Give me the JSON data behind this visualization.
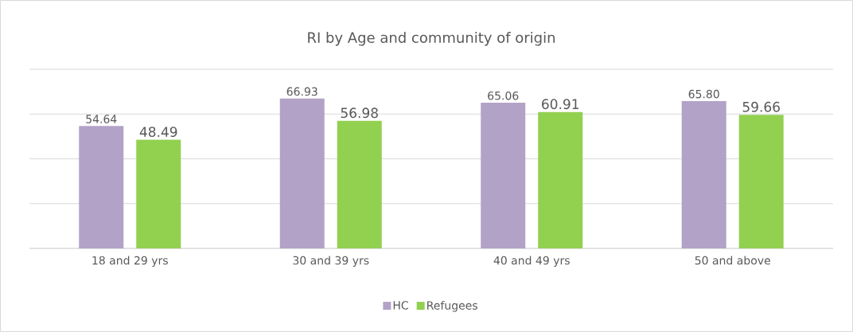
{
  "chart_data": {
    "type": "bar",
    "title": "RI by Age and community of origin",
    "categories": [
      "18 and 29 yrs",
      "30 and 39 yrs",
      "40 and 49 yrs",
      "50 and above"
    ],
    "series": [
      {
        "name": "HC",
        "color": "#b3a2c7",
        "values": [
          54.64,
          66.93,
          65.06,
          65.8
        ],
        "value_labels": [
          "54.64",
          "66.93",
          "65.06",
          "65.80"
        ]
      },
      {
        "name": "Refugees",
        "color": "#92d050",
        "values": [
          48.49,
          56.98,
          60.91,
          59.66
        ],
        "value_labels": [
          "48.49",
          "56.98",
          "60.91",
          "59.66"
        ]
      }
    ],
    "ylim": [
      0,
      80
    ],
    "yticks": [
      {
        "value": 0,
        "label": null
      },
      {
        "value": 20,
        "label": null
      },
      {
        "value": 40,
        "label": null
      },
      {
        "value": 60,
        "label": null
      },
      {
        "value": 80,
        "label": null
      }
    ],
    "tick_labels": "x",
    "grid": "y",
    "legend": "bottom"
  }
}
